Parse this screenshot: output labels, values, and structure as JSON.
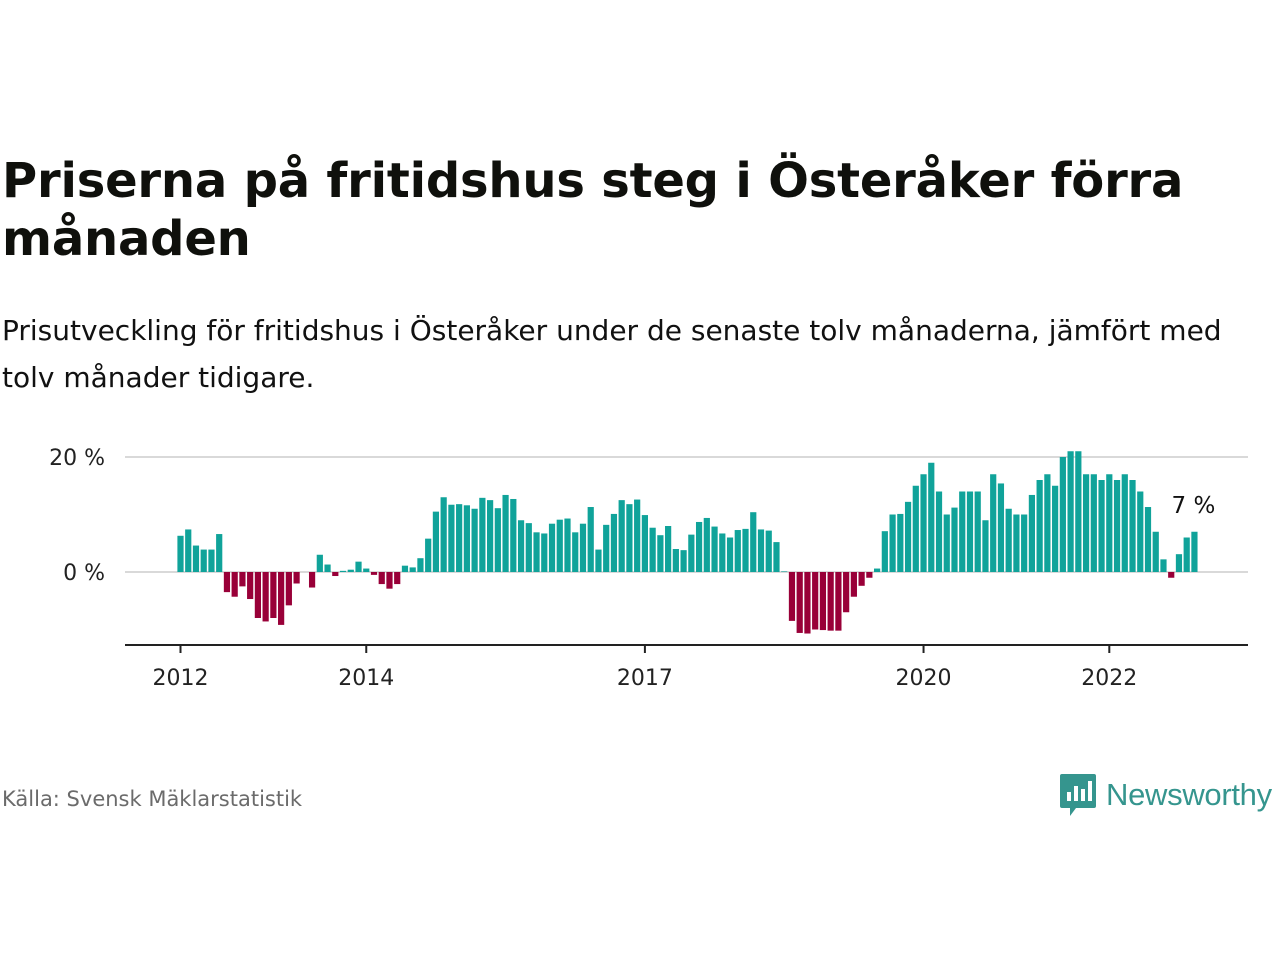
{
  "title": "Priserna på fritidshus steg i Österåker förra månaden",
  "subtitle": "Prisutveckling för fritidshus i Österåker under de senaste tolv månaderna, jämfört med tolv månader tidigare.",
  "source": "Källa: Svensk Mäklarstatistik",
  "logo": {
    "name": "Newsworthy",
    "color": "#35958e"
  },
  "colors": {
    "positive": "#10a39a",
    "negative": "#990038",
    "grid": "#d9d9d9",
    "axis": "#222222"
  },
  "chart_data": {
    "type": "bar",
    "title": "Priserna på fritidshus steg i Österåker förra månaden",
    "xlabel": "",
    "ylabel": "",
    "ylim": [
      -12,
      20
    ],
    "yticks": [
      {
        "value": 0,
        "label": "0 %"
      },
      {
        "value": 20,
        "label": "20 %"
      }
    ],
    "xticks": [
      {
        "date": "2012-01",
        "label": "2012"
      },
      {
        "date": "2014-01",
        "label": "2014"
      },
      {
        "date": "2017-01",
        "label": "2017"
      },
      {
        "date": "2020-01",
        "label": "2020"
      },
      {
        "date": "2022-01",
        "label": "2022"
      }
    ],
    "start": "2012-01",
    "last_label": "7 %",
    "grid": "horizontal",
    "legend": "none",
    "values": [
      6.3,
      7.4,
      4.6,
      3.9,
      3.9,
      6.6,
      -3.5,
      -4.3,
      -2.5,
      -4.7,
      -8.0,
      -8.6,
      -8.0,
      -9.2,
      -5.8,
      -2.0,
      0.0,
      -2.7,
      3.0,
      1.3,
      -0.7,
      0.2,
      0.4,
      1.8,
      0.6,
      -0.5,
      -2.1,
      -2.9,
      -2.1,
      1.1,
      0.8,
      2.4,
      5.8,
      10.5,
      13.0,
      11.7,
      11.8,
      11.6,
      11.0,
      12.9,
      12.5,
      11.1,
      13.4,
      12.7,
      9.0,
      8.5,
      6.9,
      6.7,
      8.4,
      9.1,
      9.3,
      6.9,
      8.4,
      11.3,
      3.9,
      8.2,
      10.1,
      12.5,
      11.8,
      12.6,
      9.9,
      7.7,
      6.4,
      8.0,
      4.0,
      3.8,
      6.5,
      8.7,
      9.4,
      7.9,
      6.7,
      6.0,
      7.3,
      7.5,
      10.4,
      7.4,
      7.2,
      5.2,
      0.1,
      -8.5,
      -10.6,
      -10.7,
      -10.0,
      -10.1,
      -10.2,
      -10.2,
      -7.0,
      -4.3,
      -2.4,
      -1.0,
      0.6,
      7.1,
      10.0,
      10.1,
      12.2,
      15.0,
      17.0,
      19.0,
      14.0,
      10.0,
      11.2,
      14.0,
      14.0,
      14.0,
      9.0,
      17.0,
      15.4,
      11.0,
      10.0,
      10.0,
      13.4,
      16.0,
      17.0,
      15.0,
      20.0,
      21.0,
      21.0,
      17.0,
      17.0,
      16.0,
      17.0,
      16.0,
      17.0,
      16.0,
      14.0,
      11.3,
      7.0,
      2.2,
      -1.0,
      3.1,
      6.0,
      7.0
    ]
  }
}
